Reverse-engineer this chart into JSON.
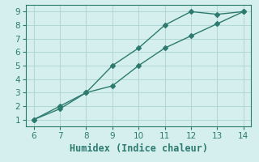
{
  "line1_x": [
    6,
    7,
    8,
    9,
    10,
    11,
    12,
    13,
    14
  ],
  "line1_y": [
    1,
    2,
    3,
    5,
    6.3,
    8,
    9,
    8.8,
    9
  ],
  "line2_x": [
    6,
    7,
    8,
    9,
    10,
    11,
    12,
    13,
    14
  ],
  "line2_y": [
    1,
    1.8,
    3,
    3.5,
    5.0,
    6.3,
    7.2,
    8.1,
    9
  ],
  "color": "#2d7a6e",
  "bg_color": "#d4efee",
  "grid_color": "#b0d8d5",
  "xlabel": "Humidex (Indice chaleur)",
  "xlim": [
    5.7,
    14.3
  ],
  "ylim": [
    0.5,
    9.5
  ],
  "xticks": [
    6,
    7,
    8,
    9,
    10,
    11,
    12,
    13,
    14
  ],
  "yticks": [
    1,
    2,
    3,
    4,
    5,
    6,
    7,
    8,
    9
  ],
  "tick_fontsize": 7.5,
  "xlabel_fontsize": 8.5,
  "marker": "D",
  "markersize": 3,
  "linewidth": 1.0
}
